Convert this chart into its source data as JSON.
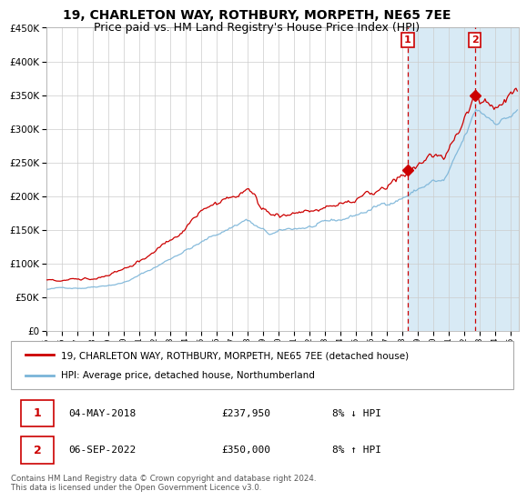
{
  "title": "19, CHARLETON WAY, ROTHBURY, MORPETH, NE65 7EE",
  "subtitle": "Price paid vs. HM Land Registry's House Price Index (HPI)",
  "hpi_label": "HPI: Average price, detached house, Northumberland",
  "property_label": "19, CHARLETON WAY, ROTHBURY, MORPETH, NE65 7EE (detached house)",
  "ylim": [
    0,
    450000
  ],
  "yticks": [
    0,
    50000,
    100000,
    150000,
    200000,
    250000,
    300000,
    350000,
    400000,
    450000
  ],
  "xlim_start": 1995.0,
  "xlim_end": 2025.5,
  "transaction1_date": 2018.34,
  "transaction1_price": 237950,
  "transaction1_label": "1",
  "transaction1_date_str": "04-MAY-2018",
  "transaction1_price_str": "£237,950",
  "transaction1_pct": "8% ↓ HPI",
  "transaction2_date": 2022.68,
  "transaction2_price": 350000,
  "transaction2_label": "2",
  "transaction2_date_str": "06-SEP-2022",
  "transaction2_price_str": "£350,000",
  "transaction2_pct": "8% ↑ HPI",
  "hpi_color": "#7ab4d8",
  "property_color": "#cc0000",
  "background_color": "#ffffff",
  "grid_color": "#cccccc",
  "vline_color": "#cc0000",
  "annotation_box_color": "#cc0000",
  "shade_color": "#d8eaf5",
  "footer_text": "Contains HM Land Registry data © Crown copyright and database right 2024.\nThis data is licensed under the Open Government Licence v3.0.",
  "title_fontsize": 10,
  "subtitle_fontsize": 9,
  "xtick_years": [
    1995,
    1996,
    1997,
    1998,
    1999,
    2000,
    2001,
    2002,
    2003,
    2004,
    2005,
    2006,
    2007,
    2008,
    2009,
    2010,
    2011,
    2012,
    2013,
    2014,
    2015,
    2016,
    2017,
    2018,
    2019,
    2020,
    2021,
    2022,
    2023,
    2024,
    2025
  ]
}
